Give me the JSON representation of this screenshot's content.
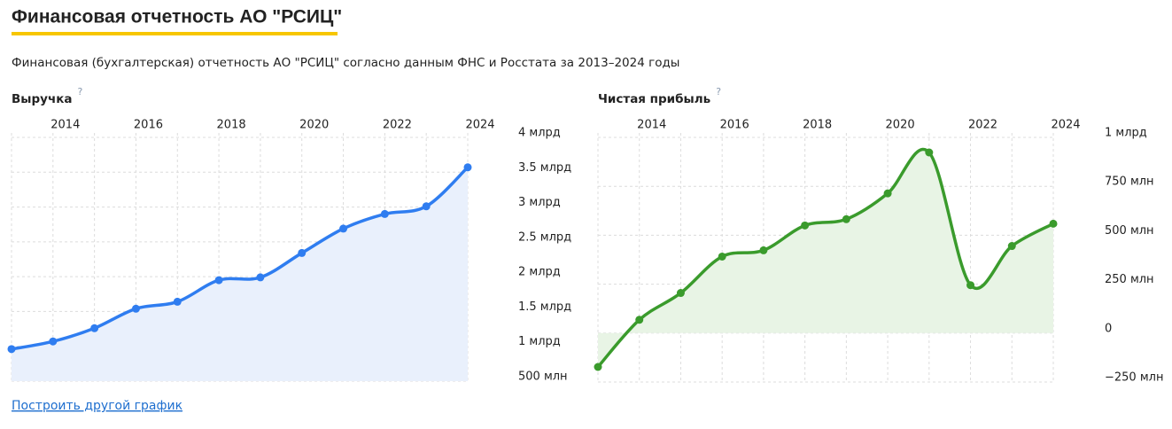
{
  "title": "Финансовая отчетность АО \"РСИЦ\"",
  "subtitle": "Финансовая (бухгалтерская) отчетность АО \"РСИЦ\" согласно данным ФНС и Росстата за 2013–2024 годы",
  "help_mark": "?",
  "link": "Построить другой график",
  "chart_data": [
    {
      "type": "area",
      "title": "Выручка",
      "color": "#2f7df0",
      "fill": "#e9f0fc",
      "grid": true,
      "x": [
        2013,
        2014,
        2015,
        2016,
        2017,
        2018,
        2019,
        2020,
        2021,
        2022,
        2023,
        2024
      ],
      "values": [
        960000000,
        1070000000,
        1260000000,
        1540000000,
        1640000000,
        1950000000,
        1990000000,
        2340000000,
        2690000000,
        2900000000,
        3010000000,
        3570000000
      ],
      "xlim": [
        2013,
        2024
      ],
      "xticks": [
        2014,
        2016,
        2018,
        2020,
        2022,
        2024
      ],
      "ylim": [
        500000000,
        4000000000
      ],
      "yticks": [
        {
          "value": 4000000000,
          "label": "4 млрд"
        },
        {
          "value": 3500000000,
          "label": "3.5 млрд"
        },
        {
          "value": 3000000000,
          "label": "3 млрд"
        },
        {
          "value": 2500000000,
          "label": "2.5 млрд"
        },
        {
          "value": 2000000000,
          "label": "2 млрд"
        },
        {
          "value": 1500000000,
          "label": "1.5 млрд"
        },
        {
          "value": 1000000000,
          "label": "1 млрд"
        },
        {
          "value": 500000000,
          "label": "500 млн"
        }
      ]
    },
    {
      "type": "area",
      "title": "Чистая прибыль",
      "color": "#3a9b2c",
      "fill": "#e8f4e5",
      "grid": true,
      "x": [
        2013,
        2014,
        2015,
        2016,
        2017,
        2018,
        2019,
        2020,
        2021,
        2022,
        2023,
        2024
      ],
      "values": [
        -173000000,
        68000000,
        205000000,
        391000000,
        423000000,
        550000000,
        582000000,
        714000000,
        923000000,
        245000000,
        445000000,
        559000000
      ],
      "xlim": [
        2013,
        2024
      ],
      "xticks": [
        2014,
        2016,
        2018,
        2020,
        2022,
        2024
      ],
      "ylim": [
        -250000000,
        1000000000
      ],
      "yticks": [
        {
          "value": 1000000000,
          "label": "1 млрд"
        },
        {
          "value": 750000000,
          "label": "750 млн"
        },
        {
          "value": 500000000,
          "label": "500 млн"
        },
        {
          "value": 250000000,
          "label": "250 млн"
        },
        0,
        {
          "value": -250000000,
          "label": "−250 млн"
        }
      ]
    }
  ]
}
